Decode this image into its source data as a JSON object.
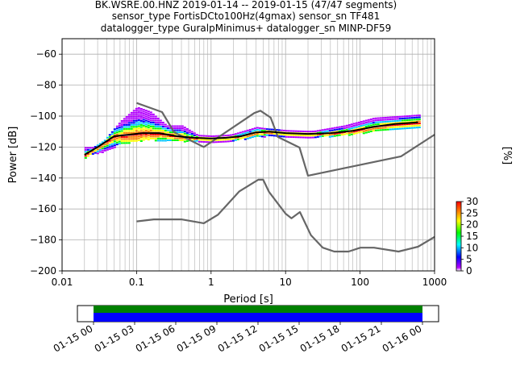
{
  "title_lines": [
    "BK.WSRE.00.HNZ   2019-01-14 -- 2019-01-15  (47/47 segments)",
    "sensor_type FortisDCto100Hz(4gmax) sensor_sn TF481",
    "datalogger_type GuralpMinimus+ datalogger_sn MINP-DF59"
  ],
  "chart_data": [
    {
      "type": "heatmap",
      "title": "BK.WSRE.00.HNZ   2019-01-14 -- 2019-01-15  (47/47 segments)",
      "xlabel": "Period [s]",
      "ylabel": "Power [dB]",
      "x_scale": "log",
      "xlim": [
        0.01,
        1000
      ],
      "ylim": [
        -200,
        -50
      ],
      "x_ticks": [
        "0.01",
        "0.1",
        "1",
        "10",
        "100",
        "1000"
      ],
      "y_ticks": [
        "−200",
        "−180",
        "−160",
        "−140",
        "−120",
        "−100",
        "−80",
        "−60"
      ],
      "grid": true,
      "colorbar": {
        "label": "[%]",
        "min": 0,
        "max": 30,
        "ticks": [
          "0",
          "5",
          "10",
          "15",
          "20",
          "25",
          "30"
        ],
        "colormap": "pqlx"
      },
      "series": [
        {
          "name": "",
          "role": "noise model high",
          "color": "#666666",
          "x": [
            0.1,
            0.22,
            0.32,
            0.8,
            3.8,
            4.6,
            6.3,
            7.9,
            15.4,
            20,
            354.8,
            1000
          ],
          "y": [
            -91.5,
            -97.4,
            -110.5,
            -120,
            -98,
            -96.5,
            -101,
            -113.5,
            -120.3,
            -138.5,
            -126,
            -112
          ]
        },
        {
          "name": "",
          "role": "noise model low",
          "color": "#666666",
          "x": [
            0.1,
            0.17,
            0.4,
            0.8,
            1.24,
            2.4,
            4.3,
            5,
            6,
            10,
            12,
            15.6,
            21.9,
            31.6,
            45,
            70,
            101,
            154,
            328,
            600,
            1000
          ],
          "y": [
            -168,
            -166.7,
            -166.7,
            -169.2,
            -163.7,
            -148.6,
            -141.1,
            -141.1,
            -149,
            -163,
            -166,
            -162,
            -177,
            -185,
            -187.5,
            -187.5,
            -185,
            -185,
            -187.5,
            -184.4,
            -178
          ]
        },
        {
          "name": "",
          "role": "mode",
          "color": "#000000",
          "x": [
            0.02,
            0.03,
            0.05,
            0.08,
            0.12,
            0.2,
            0.35,
            0.6,
            1,
            1.6,
            2.5,
            4,
            6,
            10,
            20,
            40,
            80,
            150,
            300,
            600
          ],
          "y": [
            -125,
            -120,
            -113,
            -112,
            -111,
            -111,
            -113,
            -114,
            -114.5,
            -114,
            -113,
            -110.5,
            -110,
            -111,
            -111.5,
            -111,
            -109.5,
            -107,
            -105,
            -104
          ]
        }
      ],
      "histogram_spread": [
        {
          "x": 0.03,
          "low": -124,
          "high": -120
        },
        {
          "x": 0.06,
          "low": -118,
          "high": -103
        },
        {
          "x": 0.1,
          "low": -116,
          "high": -94
        },
        {
          "x": 0.15,
          "low": -115,
          "high": -97
        },
        {
          "x": 0.25,
          "low": -116,
          "high": -106
        },
        {
          "x": 0.4,
          "low": -116,
          "high": -106
        },
        {
          "x": 0.7,
          "low": -116,
          "high": -113
        },
        {
          "x": 1.5,
          "low": -116,
          "high": -113
        },
        {
          "x": 4,
          "low": -113,
          "high": -107
        },
        {
          "x": 8,
          "low": -113,
          "high": -109
        },
        {
          "x": 20,
          "low": -113,
          "high": -110
        },
        {
          "x": 60,
          "low": -112,
          "high": -106
        },
        {
          "x": 150,
          "low": -110,
          "high": -101
        },
        {
          "x": 300,
          "low": -108,
          "high": -100
        },
        {
          "x": 600,
          "low": -108,
          "high": -99
        }
      ]
    },
    {
      "type": "timeline",
      "x_ticks": [
        "01-15 00",
        "01-15 03",
        "01-15 06",
        "01-15 09",
        "01-15 12",
        "01-15 15",
        "01-15 18",
        "01-15 21",
        "01-16 00"
      ],
      "bars": [
        {
          "name": "",
          "color": "#008000",
          "start": "01-15 00",
          "end": "01-16 00"
        },
        {
          "name": "",
          "color": "#0000ff",
          "start": "01-15 00",
          "end": "01-16 00"
        }
      ]
    }
  ]
}
